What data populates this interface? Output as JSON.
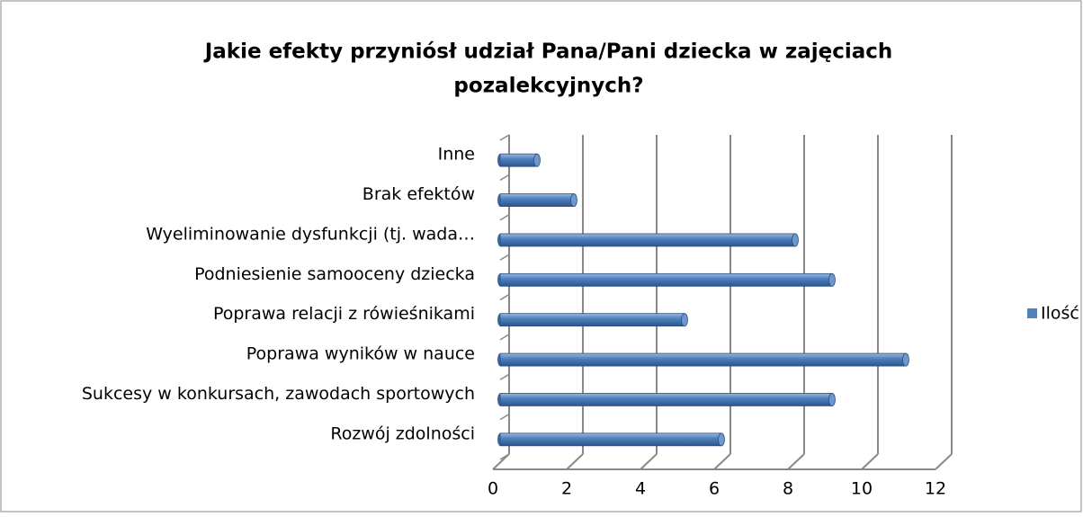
{
  "chart_data": {
    "type": "bar",
    "orientation": "horizontal",
    "title": [
      "Jakie efekty przyniósł udział Pana/Pani dziecka w zajęciach",
      "pozalekcyjnych?"
    ],
    "categories": [
      "Inne",
      "Brak efektów",
      "Wyeliminowanie dysfunkcji (tj. wada…",
      "Podniesienie samooceny dziecka",
      "Poprawa relacji z rówieśnikami",
      "Poprawa wyników w nauce",
      "Sukcesy w konkursach, zawodach sportowych",
      "Rozwój zdolności"
    ],
    "series": [
      {
        "name": "Ilość",
        "color": "#4f81bd",
        "values": [
          1,
          2,
          8,
          9,
          5,
          11,
          9,
          6
        ]
      }
    ],
    "xlim": [
      0,
      12
    ],
    "xticks": [
      0,
      2,
      4,
      6,
      8,
      10,
      12
    ],
    "grid": true,
    "legend": "right"
  }
}
